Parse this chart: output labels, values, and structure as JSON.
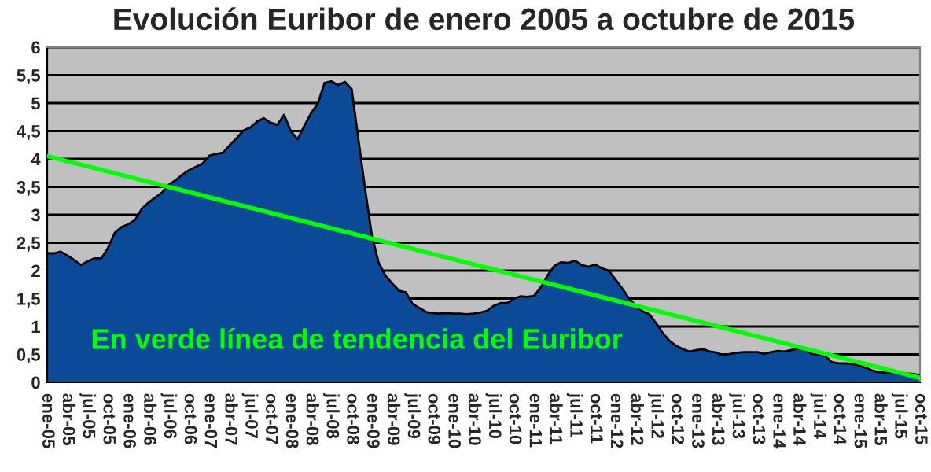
{
  "chart_data": {
    "type": "area",
    "title": "Evolución Euribor de enero 2005 a octubre de 2015",
    "categories": [
      "ene-05",
      null,
      null,
      "abr-05",
      null,
      null,
      "jul-05",
      null,
      null,
      "oct-05",
      null,
      null,
      "ene-06",
      null,
      null,
      "abr-06",
      null,
      null,
      "jul-06",
      null,
      null,
      "oct-06",
      null,
      null,
      "ene-07",
      null,
      null,
      "abr-07",
      null,
      null,
      "jul-07",
      null,
      null,
      "oct-07",
      null,
      null,
      "ene-08",
      null,
      null,
      "abr-08",
      null,
      null,
      "jul-08",
      null,
      null,
      "oct-08",
      null,
      null,
      "ene-09",
      null,
      null,
      "abr-09",
      null,
      null,
      "jul-09",
      null,
      null,
      "oct-09",
      null,
      null,
      "ene-10",
      null,
      null,
      "abr-10",
      null,
      null,
      "jul-10",
      null,
      null,
      "oct-10",
      null,
      null,
      "ene-11",
      null,
      null,
      "abr-11",
      null,
      null,
      "jul-11",
      null,
      null,
      "oct-11",
      null,
      null,
      "ene-12",
      null,
      null,
      "abr-12",
      null,
      null,
      "jul-12",
      null,
      null,
      "oct-12",
      null,
      null,
      "ene-13",
      null,
      null,
      "abr-13",
      null,
      null,
      "jul-13",
      null,
      null,
      "oct-13",
      null,
      null,
      "ene-14",
      null,
      null,
      "abr-14",
      null,
      null,
      "jul-14",
      null,
      null,
      "oct-14",
      null,
      null,
      "ene-15",
      null,
      null,
      "abr-15",
      null,
      null,
      "jul-15",
      null,
      null,
      "oct-15"
    ],
    "series": [
      {
        "color": "#0b4a99",
        "values": [
          2.31,
          2.31,
          2.34,
          2.27,
          2.19,
          2.1,
          2.17,
          2.22,
          2.22,
          2.41,
          2.68,
          2.78,
          2.83,
          2.91,
          3.11,
          3.22,
          3.31,
          3.4,
          3.54,
          3.62,
          3.72,
          3.8,
          3.86,
          3.92,
          4.06,
          4.09,
          4.11,
          4.25,
          4.37,
          4.51,
          4.56,
          4.67,
          4.73,
          4.65,
          4.61,
          4.79,
          4.5,
          4.35,
          4.59,
          4.82,
          4.99,
          5.36,
          5.39,
          5.32,
          5.38,
          5.25,
          4.35,
          3.45,
          2.62,
          2.14,
          1.91,
          1.77,
          1.64,
          1.61,
          1.41,
          1.33,
          1.26,
          1.24,
          1.23,
          1.24,
          1.23,
          1.23,
          1.22,
          1.23,
          1.25,
          1.28,
          1.37,
          1.42,
          1.42,
          1.5,
          1.54,
          1.53,
          1.55,
          1.71,
          1.92,
          2.09,
          2.15,
          2.14,
          2.18,
          2.1,
          2.07,
          2.11,
          2.04,
          2.0,
          1.84,
          1.68,
          1.5,
          1.37,
          1.27,
          1.22,
          1.06,
          0.88,
          0.74,
          0.65,
          0.59,
          0.55,
          0.58,
          0.59,
          0.55,
          0.53,
          0.48,
          0.51,
          0.53,
          0.54,
          0.54,
          0.54,
          0.51,
          0.54,
          0.56,
          0.55,
          0.58,
          0.6,
          0.59,
          0.51,
          0.49,
          0.47,
          0.36,
          0.34,
          0.34,
          0.33,
          0.3,
          0.26,
          0.21,
          0.18,
          0.17,
          0.16,
          0.17,
          0.16,
          0.15,
          0.13
        ]
      },
      {
        "type": "line",
        "color": "#00ff00",
        "values": [
          4.05,
          null,
          null,
          null,
          null,
          null,
          null,
          null,
          null,
          null,
          null,
          null,
          null,
          null,
          null,
          null,
          null,
          null,
          null,
          null,
          null,
          null,
          null,
          null,
          null,
          null,
          null,
          null,
          null,
          null,
          null,
          null,
          null,
          null,
          null,
          null,
          null,
          null,
          null,
          null,
          null,
          null,
          null,
          null,
          null,
          null,
          null,
          null,
          null,
          null,
          null,
          null,
          null,
          null,
          null,
          null,
          null,
          null,
          null,
          null,
          null,
          null,
          null,
          null,
          null,
          null,
          null,
          null,
          null,
          null,
          null,
          null,
          null,
          null,
          null,
          null,
          null,
          null,
          null,
          null,
          null,
          null,
          null,
          null,
          null,
          null,
          null,
          null,
          null,
          null,
          null,
          null,
          null,
          null,
          null,
          null,
          null,
          null,
          null,
          null,
          null,
          null,
          null,
          null,
          null,
          null,
          null,
          null,
          null,
          null,
          null,
          null,
          null,
          null,
          null,
          null,
          null,
          null,
          null,
          null,
          null,
          null,
          null,
          null,
          null,
          null,
          null,
          null,
          null,
          0.08
        ]
      }
    ],
    "annotations": [
      "En verde línea de tendencia del Euribor"
    ],
    "ylim": [
      0,
      6
    ],
    "yticks": [
      0,
      {
        "value": 0.5,
        "label": "0,5"
      },
      1,
      {
        "value": 1.5,
        "label": "1,5"
      },
      2,
      {
        "value": 2.5,
        "label": "2,5"
      },
      3,
      {
        "value": 3.5,
        "label": "3,5"
      },
      4,
      {
        "value": 4.5,
        "label": "4,5"
      },
      5,
      {
        "value": 5.5,
        "label": "5,5"
      },
      6
    ],
    "grid": "y",
    "legend": false
  }
}
